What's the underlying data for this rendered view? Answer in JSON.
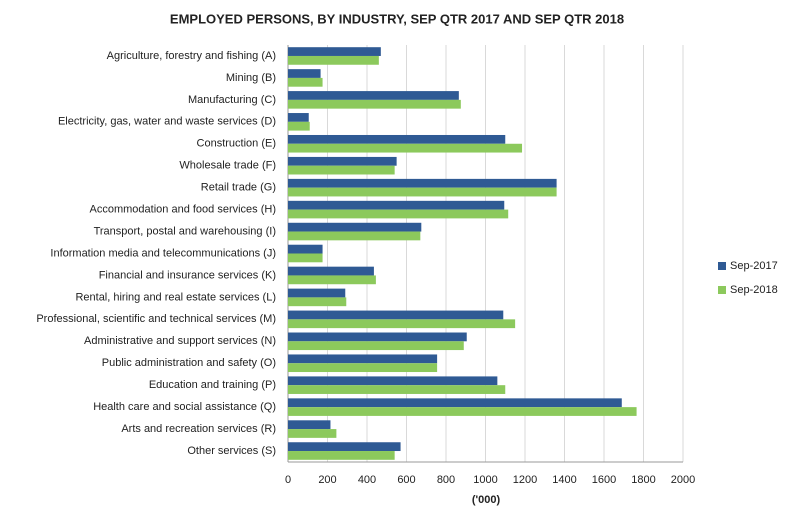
{
  "chart_data": {
    "type": "hbar",
    "title": "EMPLOYED PERSONS, BY INDUSTRY, SEP QTR 2017 AND SEP QTR 2018",
    "x_label": "('000)",
    "categories": [
      "Agriculture, forestry and fishing (A)",
      "Mining (B)",
      "Manufacturing (C)",
      "Electricity, gas, water and waste services (D)",
      "Construction (E)",
      "Wholesale trade (F)",
      "Retail trade (G)",
      "Accommodation and food services (H)",
      "Transport, postal and warehousing (I)",
      "Information media and telecommunications (J)",
      "Financial and insurance services (K)",
      "Rental, hiring and real estate services (L)",
      "Professional, scientific and technical services (M)",
      "Administrative and support services (N)",
      "Public administration and safety (O)",
      "Education and training (P)",
      "Health care and social assistance (Q)",
      "Arts and recreation services (R)",
      "Other services (S)"
    ],
    "series": [
      {
        "name": "Sep-2017",
        "color": "#2f5a94",
        "values": [
          470,
          165,
          865,
          105,
          1100,
          550,
          1360,
          1095,
          675,
          175,
          435,
          290,
          1090,
          905,
          755,
          1060,
          1690,
          215,
          570
        ]
      },
      {
        "name": "Sep-2018",
        "color": "#8cc95c",
        "values": [
          460,
          175,
          875,
          110,
          1185,
          540,
          1360,
          1115,
          670,
          175,
          445,
          295,
          1150,
          890,
          755,
          1100,
          1765,
          245,
          540
        ]
      }
    ],
    "xlim": [
      0,
      2000
    ],
    "xticks": [
      0,
      200,
      400,
      600,
      800,
      1000,
      1200,
      1400,
      1600,
      1800,
      2000
    ],
    "grid": true,
    "legend": "right"
  }
}
